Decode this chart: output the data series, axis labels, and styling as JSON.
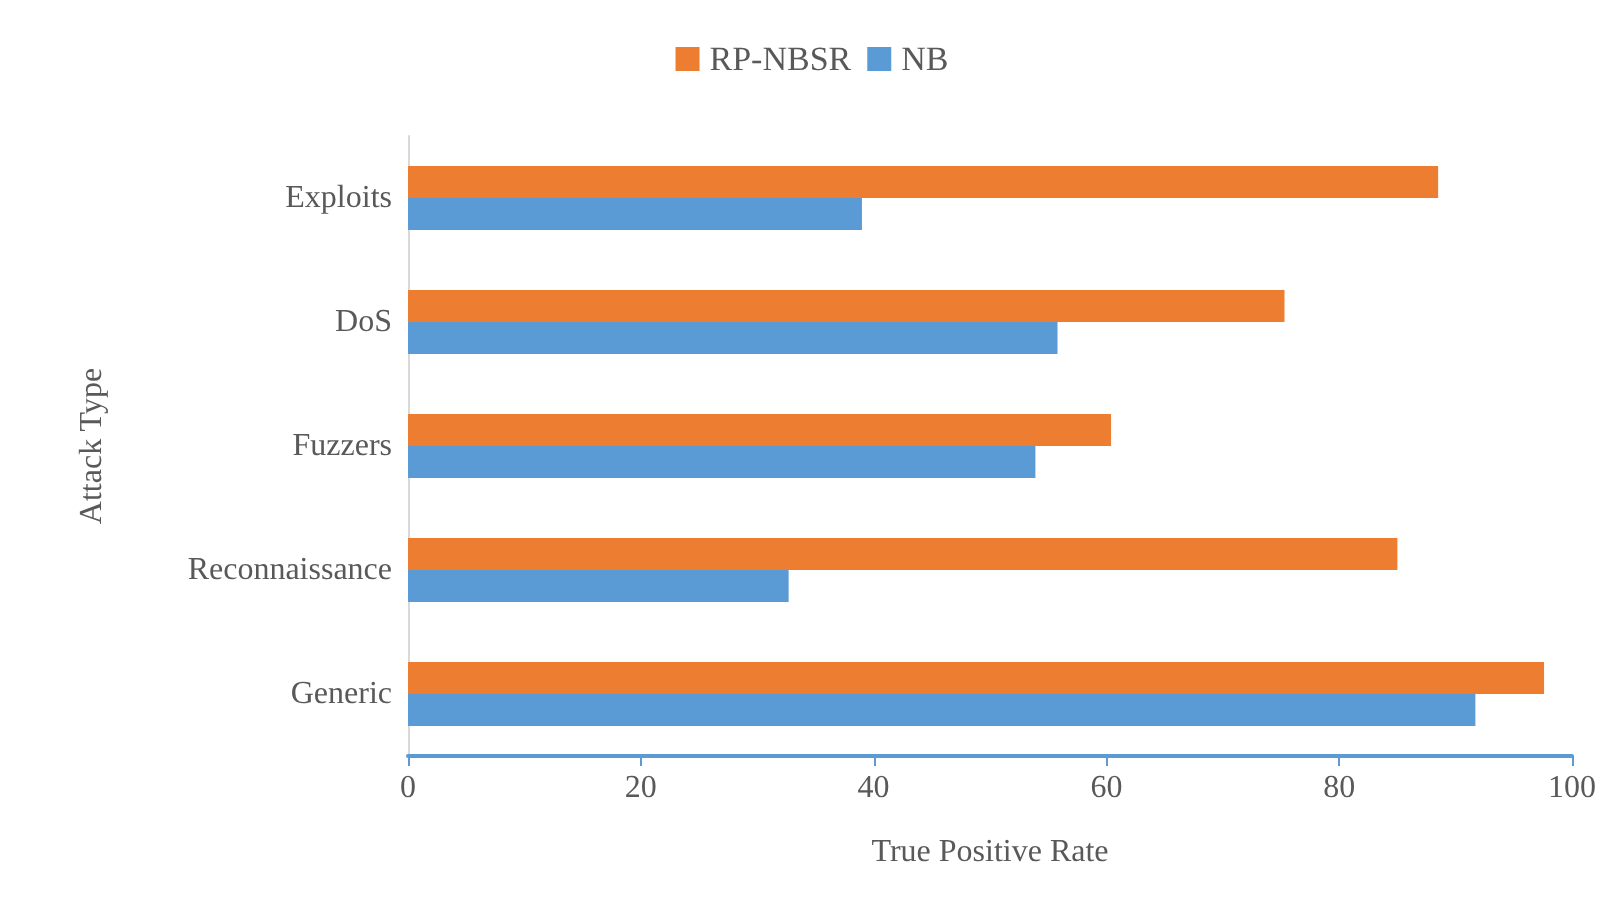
{
  "chart_data": {
    "type": "bar",
    "orientation": "horizontal",
    "xlabel": "True Positive Rate",
    "ylabel": "Attack Type",
    "categories": [
      "Exploits",
      "DoS",
      "Fuzzers",
      "Reconnaissance",
      "Generic"
    ],
    "series": [
      {
        "name": "RP-NBSR",
        "color": "#ed7d31",
        "values": [
          88.5,
          75.3,
          60.4,
          85.0,
          97.6
        ]
      },
      {
        "name": "NB",
        "color": "#5b9bd5",
        "values": [
          39.0,
          55.8,
          53.9,
          32.7,
          91.7
        ]
      }
    ],
    "xlim": [
      0,
      100
    ],
    "xticks": [
      0,
      20,
      40,
      60,
      80,
      100
    ],
    "grid": false,
    "legend": "top"
  }
}
